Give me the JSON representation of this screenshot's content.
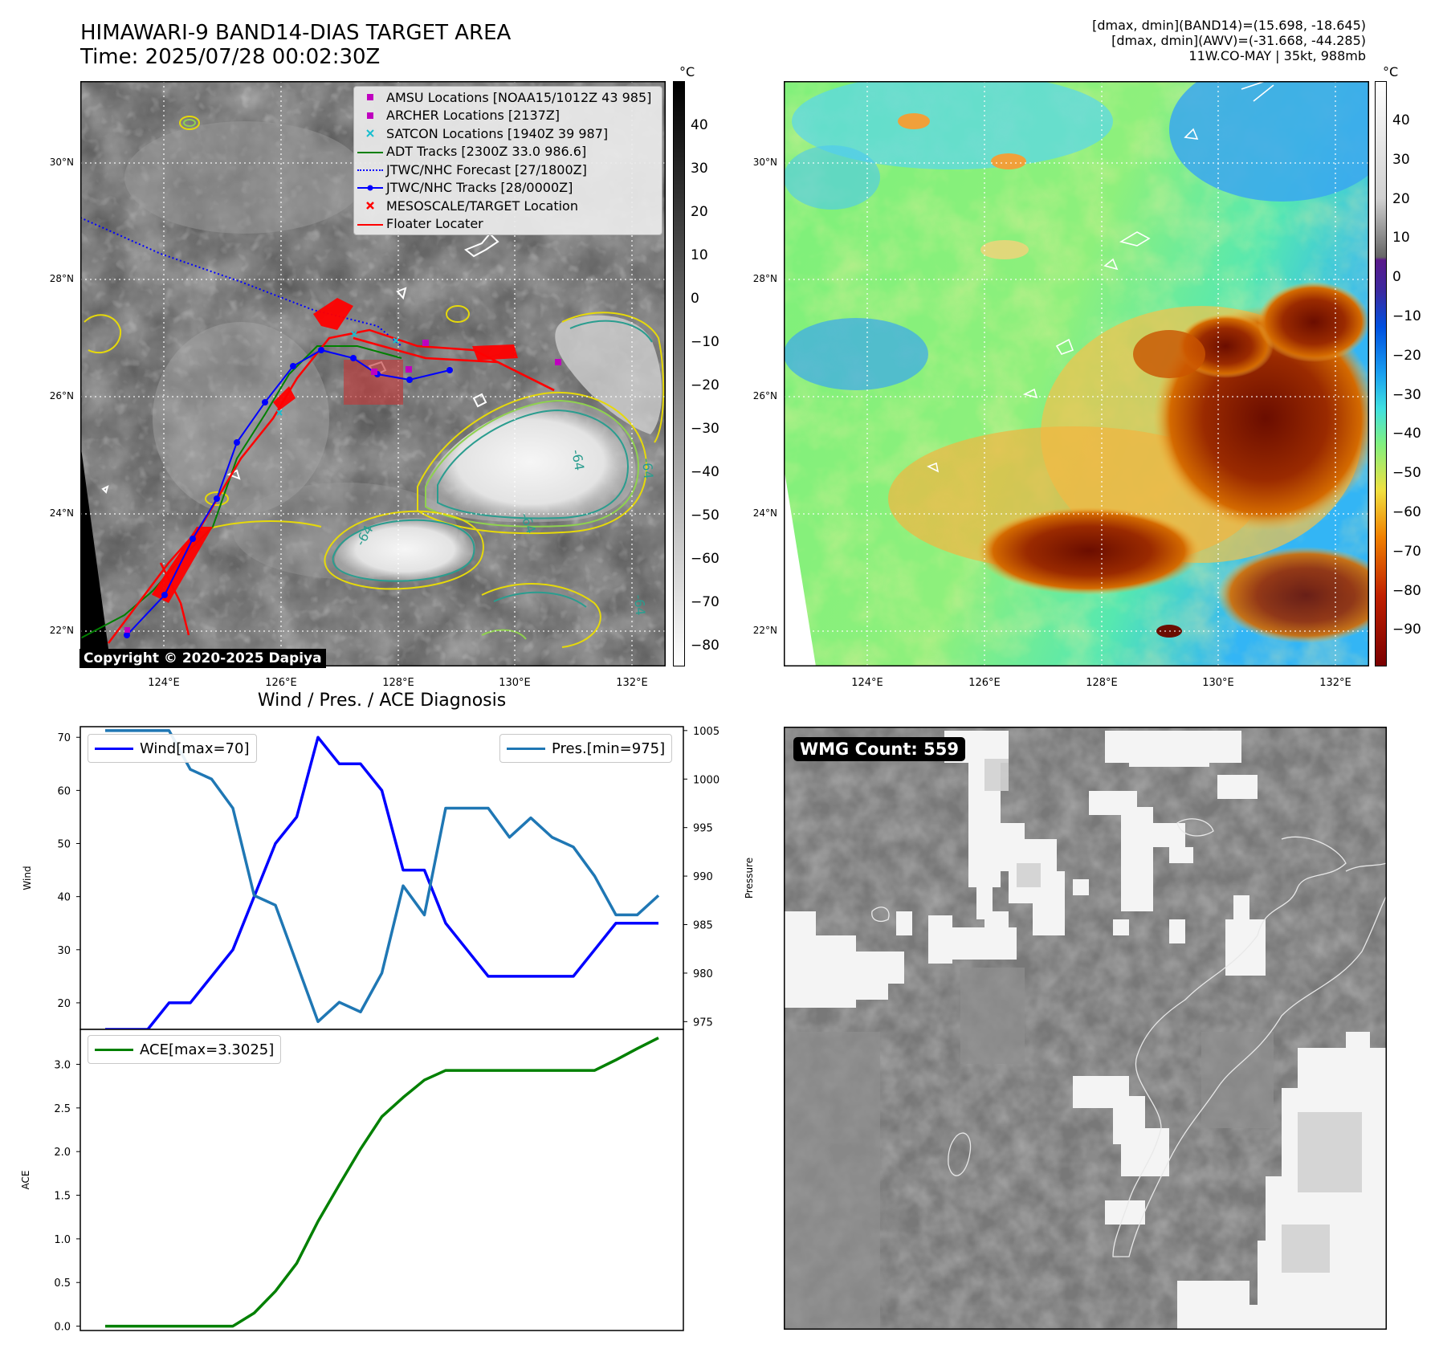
{
  "header": {
    "title_line1": "HIMAWARI-9 BAND14-DIAS TARGET AREA",
    "title_line2": "Time: 2025/07/28 00:02:30Z",
    "right_line1": "[dmax, dmin](BAND14)=(15.698, -18.645)",
    "right_line2": "[dmax, dmin](AWV)=(-31.668, -44.285)",
    "right_line3": "11W.CO-MAY | 35kt, 988mb"
  },
  "map_axes": {
    "lon_ticks": [
      "124°E",
      "126°E",
      "128°E",
      "130°E",
      "132°E"
    ],
    "lat_ticks": [
      "30°N",
      "28°N",
      "26°N",
      "24°N",
      "22°N"
    ]
  },
  "left_map": {
    "copyright": "Copyright © 2020-2025 Dapiya",
    "colorbar_unit": "°C",
    "colorbar_ticks": [
      "40",
      "30",
      "20",
      "10",
      "0",
      "−10",
      "−20",
      "−30",
      "−40",
      "−50",
      "−60",
      "−70",
      "−80"
    ],
    "contour_labels": [
      "-64",
      "-64",
      "-64",
      "-64",
      "-64"
    ],
    "legend": [
      {
        "label": "AMSU Locations [NOAA15/1012Z 43 985]",
        "symbol": "square",
        "color": "#bf00bf"
      },
      {
        "label": "ARCHER Locations [2137Z]",
        "symbol": "square",
        "color": "#bf00bf"
      },
      {
        "label": "SATCON Locations [1940Z 39 987]",
        "symbol": "x",
        "color": "#17becf"
      },
      {
        "label": "ADT Tracks [2300Z 33.0 986.6]",
        "symbol": "line",
        "color": "#008000"
      },
      {
        "label": "JTWC/NHC Forecast [27/1800Z]",
        "symbol": "dotted",
        "color": "#0000ff"
      },
      {
        "label": "JTWC/NHC Tracks [28/0000Z]",
        "symbol": "line-dot",
        "color": "#0000ff"
      },
      {
        "label": "MESOSCALE/TARGET Location",
        "symbol": "x",
        "color": "#ff0000"
      },
      {
        "label": "Floater Locater",
        "symbol": "line",
        "color": "#ff0000"
      }
    ]
  },
  "right_map": {
    "colorbar_unit": "°C",
    "colorbar_ticks": [
      "40",
      "30",
      "20",
      "10",
      "0",
      "−10",
      "−20",
      "−30",
      "−40",
      "−50",
      "−60",
      "−70",
      "−80",
      "−90"
    ]
  },
  "wmg_panel": {
    "badge": "WMG Count: 559"
  },
  "chart_data": [
    {
      "type": "line",
      "title": "Wind / Pres. / ACE Diagnosis",
      "ylabel": "Wind",
      "y2label": "Pressure",
      "ylim": [
        15,
        72
      ],
      "y2lim": [
        974.2,
        1005.4
      ],
      "yticks": [
        20,
        30,
        40,
        50,
        60,
        70
      ],
      "y2ticks": [
        975,
        980,
        985,
        990,
        995,
        1000,
        1005
      ],
      "series": [
        {
          "name": "Wind[max=70]",
          "color": "#0000ff",
          "axis": "left",
          "values": [
            15,
            15,
            15,
            20,
            20,
            25,
            30,
            40,
            50,
            55,
            70,
            65,
            65,
            60,
            45,
            45,
            35,
            30,
            25,
            25,
            25,
            25,
            25,
            30,
            35,
            35,
            35
          ]
        },
        {
          "name": "Pres.[min=975]",
          "color": "#1f77b4",
          "axis": "right",
          "values": [
            1005,
            1005,
            1005,
            1005,
            1001,
            1000,
            997,
            988,
            987,
            981,
            975,
            977,
            976,
            980,
            989,
            986,
            997,
            997,
            997,
            994,
            996,
            994,
            993,
            990,
            986,
            986,
            988
          ]
        }
      ]
    },
    {
      "type": "line",
      "ylabel": "ACE",
      "ylim": [
        -0.05,
        3.4
      ],
      "yticks": [
        0.0,
        0.5,
        1.0,
        1.5,
        2.0,
        2.5,
        3.0
      ],
      "series": [
        {
          "name": "ACE[max=3.3025]",
          "color": "#008000",
          "values": [
            0,
            0,
            0,
            0,
            0,
            0,
            0,
            0.15,
            0.4,
            0.72,
            1.2,
            1.62,
            2.03,
            2.4,
            2.62,
            2.82,
            2.93,
            2.93,
            2.93,
            2.93,
            2.93,
            2.93,
            2.93,
            2.93,
            3.05,
            3.18,
            3.3025
          ]
        }
      ]
    }
  ]
}
